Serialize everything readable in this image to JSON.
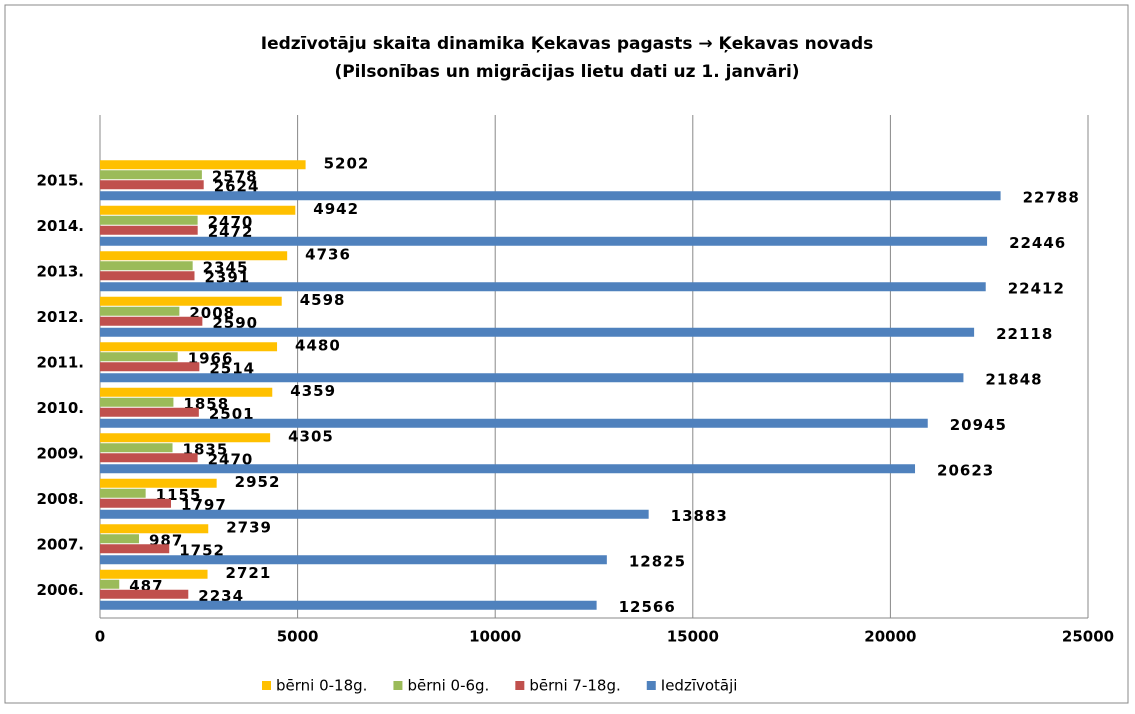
{
  "chart_data": {
    "type": "bar",
    "orientation": "horizontal",
    "title": "Iedzīvotāju skaita dinamika Ķekavas pagasts → Ķekavas novads",
    "subtitle": "(Pilsonības un migrācijas lietu dati uz  1. janvāri)",
    "categories": [
      "2006.",
      "2007.",
      "2008.",
      "2009.",
      "2010.",
      "2011.",
      "2012.",
      "2013.",
      "2014.",
      "2015."
    ],
    "series": [
      {
        "name": "bērni 0-18g.",
        "color": "#ffc000",
        "values": [
          2721,
          2739,
          2952,
          4305,
          4359,
          4480,
          4598,
          4736,
          4942,
          5202
        ]
      },
      {
        "name": "bērni 0-6g.",
        "color": "#9bbb59",
        "values": [
          487,
          987,
          1155,
          1835,
          1858,
          1966,
          2008,
          2345,
          2470,
          2578
        ]
      },
      {
        "name": "bērni 7-18g.",
        "color": "#c0504d",
        "values": [
          2234,
          1752,
          1797,
          2470,
          2501,
          2514,
          2590,
          2391,
          2472,
          2624
        ]
      },
      {
        "name": "Iedzīvotāji",
        "color": "#4f81bd",
        "values": [
          12566,
          12825,
          13883,
          20623,
          20945,
          21848,
          22118,
          22412,
          22446,
          22788
        ]
      }
    ],
    "xlim": [
      0,
      25000
    ],
    "xticks": [
      0,
      5000,
      10000,
      15000,
      20000,
      25000
    ],
    "grid": true,
    "legend": "bottom"
  }
}
